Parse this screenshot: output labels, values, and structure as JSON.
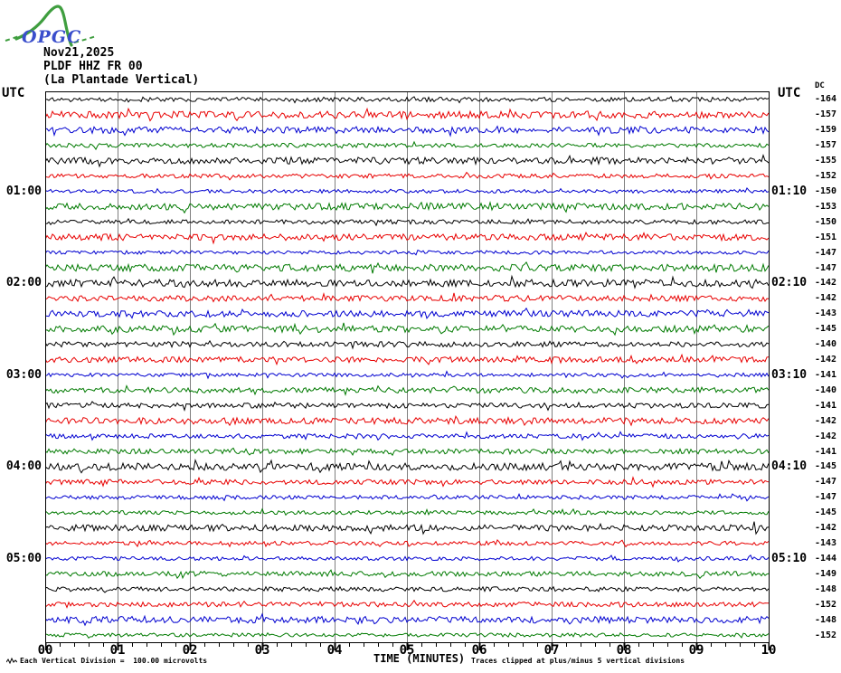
{
  "logo": {
    "text": "OPGC"
  },
  "header": {
    "date": "Nov21,2025",
    "station": "PLDF HHZ FR 00",
    "station_name": "(La Plantade Vertical)"
  },
  "axis_headers": {
    "utc_left": "UTC",
    "utc_right": "UTC",
    "dc": "DC"
  },
  "footer": {
    "scale_note": "Each Vertical Division =  100.00 microvolts",
    "time_title": "TIME (MINUTES)",
    "clip_note": "Traces clipped at plus/minus 5 vertical divisions"
  },
  "colors": {
    "black": "#000000",
    "red": "#e80000",
    "blue": "#0000d0",
    "green": "#007a00",
    "grid": "#7f7f7f",
    "frame": "#000000",
    "logo_green": "#3f9e3f",
    "logo_blue": "#3a4ecc"
  },
  "chart_data": {
    "type": "line",
    "subtype": "helicorder-seismogram",
    "title": "PLDF HHZ FR 00 (La Plantade Vertical) Nov21,2025",
    "xlabel": "TIME (MINUTES)",
    "x_range_minutes": [
      0,
      10
    ],
    "x_major_tick_minutes": 1,
    "x_minor_tick_minutes": 0.2,
    "x_tick_labels": [
      "00",
      "01",
      "02",
      "03",
      "04",
      "05",
      "06",
      "07",
      "08",
      "09",
      "10"
    ],
    "num_rows": 36,
    "row_duration_minutes": 10,
    "rows_per_hour": 6,
    "trace_color_cycle": [
      "black",
      "red",
      "blue",
      "green"
    ],
    "left_time_labels": [
      {
        "row": 6,
        "label": "01:00"
      },
      {
        "row": 12,
        "label": "02:00"
      },
      {
        "row": 18,
        "label": "03:00"
      },
      {
        "row": 24,
        "label": "04:00"
      },
      {
        "row": 30,
        "label": "05:00"
      }
    ],
    "right_time_labels": [
      {
        "row": 6,
        "label": "01:10"
      },
      {
        "row": 12,
        "label": "02:10"
      },
      {
        "row": 18,
        "label": "03:10"
      },
      {
        "row": 24,
        "label": "04:10"
      },
      {
        "row": 30,
        "label": "05:10"
      }
    ],
    "dc_values": [
      -164,
      -157,
      -159,
      -157,
      -155,
      -152,
      -150,
      -153,
      -150,
      -151,
      -147,
      -147,
      -142,
      -142,
      -143,
      -145,
      -140,
      -142,
      -141,
      -140,
      -141,
      -142,
      -142,
      -141,
      -145,
      -147,
      -147,
      -145,
      -142,
      -143,
      -144,
      -149,
      -148,
      -152,
      -148,
      -152
    ],
    "grid": "vertical-minute-lines",
    "legend": "none"
  }
}
